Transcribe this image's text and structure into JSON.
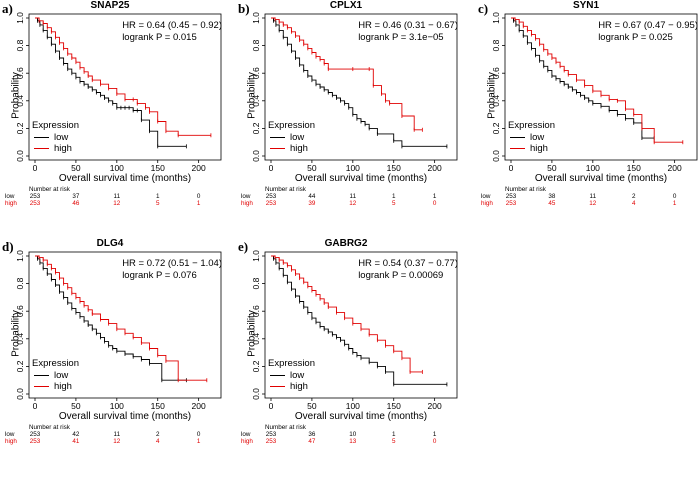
{
  "common": {
    "ylabel": "Probability",
    "xlabel": "Overall survival time (months)",
    "legend_title": "Expression",
    "legend_low": "low",
    "legend_high": "high",
    "risk_header": "Number at risk",
    "risk_low_label": "low",
    "risk_high_label": "high",
    "colors": {
      "low": "#000000",
      "high": "#e00000"
    }
  },
  "chart_data": [
    {
      "type": "line",
      "panel": "a)",
      "title": "SNAP25",
      "stats": [
        "HR = 0.64 (0.45 − 0.92)",
        "logrank P = 0.015"
      ],
      "xlim": [
        0,
        220
      ],
      "ylim": [
        0,
        1
      ],
      "xticks": [
        "0",
        "50",
        "100",
        "150",
        "200"
      ],
      "yticks": [
        "0.0",
        "0.2",
        "0.4",
        "0.6",
        "0.8",
        "1.0"
      ],
      "risk_times": [
        0,
        50,
        100,
        150,
        200
      ],
      "risk_low": [
        "253",
        "37",
        "11",
        "1",
        "0"
      ],
      "risk_high": [
        "253",
        "46",
        "12",
        "5",
        "1"
      ],
      "series": [
        {
          "name": "low",
          "x": [
            0,
            3,
            6,
            10,
            15,
            20,
            25,
            30,
            35,
            40,
            45,
            50,
            55,
            60,
            65,
            70,
            75,
            80,
            85,
            90,
            95,
            100,
            105,
            110,
            115,
            120,
            125,
            130,
            140,
            150,
            185
          ],
          "y": [
            1.0,
            0.98,
            0.95,
            0.91,
            0.86,
            0.81,
            0.76,
            0.71,
            0.67,
            0.63,
            0.6,
            0.57,
            0.54,
            0.52,
            0.5,
            0.48,
            0.46,
            0.44,
            0.42,
            0.4,
            0.38,
            0.35,
            0.35,
            0.35,
            0.35,
            0.33,
            0.33,
            0.26,
            0.18,
            0.07,
            0.07
          ]
        },
        {
          "name": "high",
          "x": [
            0,
            5,
            10,
            15,
            20,
            25,
            30,
            35,
            40,
            45,
            50,
            55,
            60,
            65,
            70,
            80,
            90,
            100,
            110,
            120,
            125,
            135,
            140,
            150,
            160,
            175,
            215
          ],
          "y": [
            1.0,
            0.98,
            0.96,
            0.93,
            0.9,
            0.86,
            0.82,
            0.78,
            0.74,
            0.71,
            0.68,
            0.64,
            0.61,
            0.58,
            0.55,
            0.52,
            0.49,
            0.45,
            0.41,
            0.41,
            0.38,
            0.35,
            0.32,
            0.25,
            0.18,
            0.15,
            0.15
          ]
        }
      ]
    },
    {
      "type": "line",
      "panel": "b)",
      "title": "CPLX1",
      "stats": [
        "HR = 0.46 (0.31 − 0.67)",
        "logrank P = 3.1e−05"
      ],
      "xlim": [
        0,
        220
      ],
      "ylim": [
        0,
        1
      ],
      "xticks": [
        "0",
        "50",
        "100",
        "150",
        "200"
      ],
      "yticks": [
        "0.0",
        "0.2",
        "0.4",
        "0.6",
        "0.8",
        "1.0"
      ],
      "risk_times": [
        0,
        50,
        100,
        150,
        200
      ],
      "risk_low": [
        "253",
        "44",
        "11",
        "1",
        "1"
      ],
      "risk_high": [
        "253",
        "39",
        "12",
        "5",
        "0"
      ],
      "series": [
        {
          "name": "low",
          "x": [
            0,
            3,
            6,
            10,
            15,
            20,
            25,
            30,
            35,
            40,
            45,
            50,
            55,
            60,
            65,
            70,
            75,
            80,
            85,
            90,
            95,
            100,
            105,
            110,
            115,
            120,
            130,
            150,
            160,
            215
          ],
          "y": [
            1.0,
            0.98,
            0.95,
            0.91,
            0.86,
            0.81,
            0.76,
            0.71,
            0.66,
            0.62,
            0.58,
            0.55,
            0.52,
            0.5,
            0.48,
            0.46,
            0.44,
            0.42,
            0.4,
            0.38,
            0.35,
            0.3,
            0.27,
            0.25,
            0.23,
            0.2,
            0.16,
            0.11,
            0.07,
            0.07
          ]
        },
        {
          "name": "high",
          "x": [
            0,
            5,
            10,
            15,
            20,
            25,
            30,
            35,
            40,
            45,
            50,
            55,
            60,
            65,
            70,
            100,
            120,
            125,
            135,
            140,
            145,
            160,
            175,
            185
          ],
          "y": [
            1.0,
            0.99,
            0.97,
            0.95,
            0.93,
            0.9,
            0.87,
            0.84,
            0.81,
            0.78,
            0.75,
            0.72,
            0.7,
            0.67,
            0.63,
            0.63,
            0.63,
            0.51,
            0.45,
            0.4,
            0.38,
            0.29,
            0.19,
            0.19
          ]
        }
      ]
    },
    {
      "type": "line",
      "panel": "c)",
      "title": "SYN1",
      "stats": [
        "HR = 0.67 (0.47 − 0.95)",
        "logrank P = 0.025"
      ],
      "xlim": [
        0,
        220
      ],
      "ylim": [
        0,
        1
      ],
      "xticks": [
        "0",
        "50",
        "100",
        "150",
        "200"
      ],
      "yticks": [
        "0.0",
        "0.2",
        "0.4",
        "0.6",
        "0.8",
        "1.0"
      ],
      "risk_times": [
        0,
        50,
        100,
        150,
        200
      ],
      "risk_low": [
        "253",
        "38",
        "11",
        "2",
        "0"
      ],
      "risk_high": [
        "253",
        "45",
        "12",
        "4",
        "1"
      ],
      "series": [
        {
          "name": "low",
          "x": [
            0,
            3,
            6,
            10,
            15,
            20,
            25,
            30,
            35,
            40,
            45,
            50,
            55,
            60,
            65,
            70,
            75,
            80,
            85,
            90,
            95,
            100,
            110,
            120,
            130,
            140,
            150,
            160,
            175
          ],
          "y": [
            1.0,
            0.98,
            0.95,
            0.91,
            0.87,
            0.82,
            0.78,
            0.73,
            0.69,
            0.65,
            0.62,
            0.58,
            0.56,
            0.54,
            0.52,
            0.5,
            0.48,
            0.46,
            0.44,
            0.42,
            0.4,
            0.38,
            0.36,
            0.33,
            0.3,
            0.27,
            0.24,
            0.13,
            0.13
          ]
        },
        {
          "name": "high",
          "x": [
            0,
            5,
            10,
            15,
            20,
            25,
            30,
            35,
            40,
            45,
            50,
            55,
            60,
            65,
            70,
            80,
            90,
            100,
            110,
            120,
            130,
            140,
            150,
            160,
            175,
            210
          ],
          "y": [
            1.0,
            0.99,
            0.97,
            0.94,
            0.91,
            0.88,
            0.85,
            0.81,
            0.77,
            0.74,
            0.71,
            0.68,
            0.65,
            0.62,
            0.59,
            0.55,
            0.51,
            0.47,
            0.44,
            0.41,
            0.4,
            0.34,
            0.3,
            0.2,
            0.1,
            0.1
          ]
        }
      ]
    },
    {
      "type": "line",
      "panel": "d)",
      "title": "DLG4",
      "stats": [
        "HR = 0.72 (0.51 − 1.04)",
        "logrank P = 0.076"
      ],
      "xlim": [
        0,
        220
      ],
      "ylim": [
        0,
        1
      ],
      "xticks": [
        "0",
        "50",
        "100",
        "150",
        "200"
      ],
      "yticks": [
        "0.0",
        "0.2",
        "0.4",
        "0.6",
        "0.8",
        "1.0"
      ],
      "risk_times": [
        0,
        50,
        100,
        150,
        200
      ],
      "risk_low": [
        "253",
        "42",
        "11",
        "2",
        "0"
      ],
      "risk_high": [
        "253",
        "41",
        "12",
        "4",
        "1"
      ],
      "series": [
        {
          "name": "low",
          "x": [
            0,
            3,
            6,
            10,
            15,
            20,
            25,
            30,
            35,
            40,
            45,
            50,
            55,
            60,
            65,
            70,
            75,
            80,
            85,
            90,
            95,
            100,
            110,
            120,
            130,
            140,
            155,
            185
          ],
          "y": [
            1.0,
            0.98,
            0.95,
            0.91,
            0.87,
            0.83,
            0.79,
            0.74,
            0.7,
            0.66,
            0.62,
            0.59,
            0.56,
            0.53,
            0.5,
            0.47,
            0.44,
            0.41,
            0.38,
            0.35,
            0.33,
            0.31,
            0.29,
            0.27,
            0.25,
            0.22,
            0.1,
            0.1
          ]
        },
        {
          "name": "high",
          "x": [
            0,
            5,
            10,
            15,
            20,
            25,
            30,
            35,
            40,
            45,
            50,
            55,
            60,
            65,
            70,
            80,
            90,
            100,
            110,
            120,
            130,
            140,
            150,
            160,
            175,
            210
          ],
          "y": [
            1.0,
            0.99,
            0.97,
            0.94,
            0.91,
            0.88,
            0.84,
            0.8,
            0.77,
            0.73,
            0.7,
            0.67,
            0.64,
            0.61,
            0.58,
            0.54,
            0.51,
            0.47,
            0.44,
            0.41,
            0.37,
            0.33,
            0.28,
            0.24,
            0.1,
            0.1
          ]
        }
      ]
    },
    {
      "type": "line",
      "panel": "e)",
      "title": "GABRG2",
      "stats": [
        "HR = 0.54 (0.37 − 0.77)",
        "logrank P = 0.00069"
      ],
      "xlim": [
        0,
        220
      ],
      "ylim": [
        0,
        1
      ],
      "xticks": [
        "0",
        "50",
        "100",
        "150",
        "200"
      ],
      "yticks": [
        "0.0",
        "0.2",
        "0.4",
        "0.6",
        "0.8",
        "1.0"
      ],
      "risk_times": [
        0,
        50,
        100,
        150,
        200
      ],
      "risk_low": [
        "253",
        "36",
        "10",
        "1",
        "1"
      ],
      "risk_high": [
        "253",
        "47",
        "13",
        "5",
        "0"
      ],
      "series": [
        {
          "name": "low",
          "x": [
            0,
            3,
            6,
            10,
            15,
            20,
            25,
            30,
            35,
            40,
            45,
            50,
            55,
            60,
            65,
            70,
            75,
            80,
            85,
            90,
            95,
            100,
            105,
            110,
            120,
            130,
            140,
            150,
            215
          ],
          "y": [
            1.0,
            0.98,
            0.95,
            0.91,
            0.86,
            0.81,
            0.76,
            0.71,
            0.67,
            0.63,
            0.59,
            0.55,
            0.52,
            0.49,
            0.47,
            0.45,
            0.43,
            0.41,
            0.39,
            0.36,
            0.33,
            0.3,
            0.28,
            0.26,
            0.23,
            0.2,
            0.16,
            0.07,
            0.07
          ]
        },
        {
          "name": "high",
          "x": [
            0,
            5,
            10,
            15,
            20,
            25,
            30,
            35,
            40,
            45,
            50,
            55,
            60,
            65,
            70,
            80,
            90,
            100,
            110,
            120,
            130,
            140,
            150,
            160,
            170,
            185
          ],
          "y": [
            1.0,
            0.99,
            0.97,
            0.95,
            0.93,
            0.9,
            0.87,
            0.84,
            0.81,
            0.78,
            0.75,
            0.72,
            0.69,
            0.66,
            0.63,
            0.59,
            0.55,
            0.51,
            0.47,
            0.43,
            0.39,
            0.35,
            0.31,
            0.26,
            0.16,
            0.16
          ]
        }
      ]
    }
  ]
}
